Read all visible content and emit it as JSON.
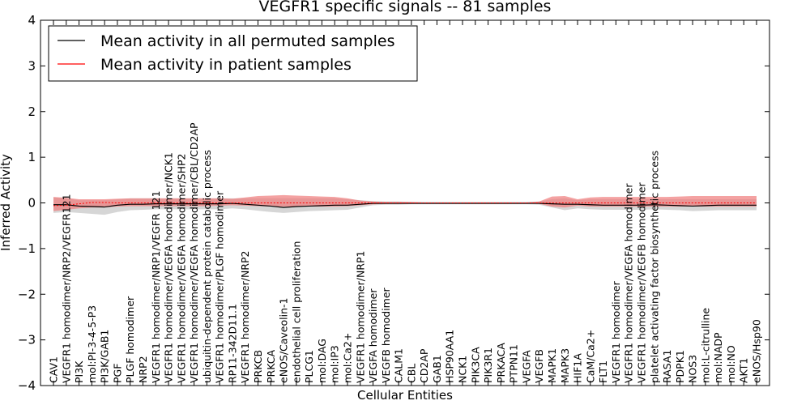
{
  "chart_data": {
    "type": "line",
    "title": "VEGFR1 specific signals -- 81 samples",
    "xlabel": "Cellular Entities",
    "ylabel": "Inferred Activity",
    "ylim": [
      -4,
      4
    ],
    "yticks": [
      "4",
      "3",
      "2",
      "1",
      "0",
      "−1",
      "−2",
      "−3",
      "−4"
    ],
    "ytick_values": [
      4,
      3,
      2,
      1,
      0,
      -1,
      -2,
      -3,
      -4
    ],
    "legend": {
      "placement": "top-left",
      "entries": [
        {
          "label": "Mean activity in all permuted samples",
          "color": "#000000"
        },
        {
          "label": "Mean activity in patient samples",
          "color": "#ff0000"
        }
      ]
    },
    "colors": {
      "permuted_line": "#000000",
      "patient_line": "#ff0000",
      "permuted_band": "#c8c8c8",
      "patient_band": "#ef7a7a"
    },
    "categories": [
      "CAV1",
      "VEGFR1 homodimer/NRP2/VEGFR121",
      "PI3K",
      "mol:PI-3-4-5-P3",
      "PI3K/GAB1",
      "PGF",
      "PLGF homodimer",
      "NRP2",
      "VEGFR1 homodimer/NRP1/VEGFR 121",
      "VEGFR1 homodimer/VEGFA homodimer/NCK1",
      "VEGFR1 homodimer/VEGFA homodimer/SHP2",
      "VEGFR1 homodimer/VEGFA homodimer/CBL/CD2AP",
      "ubiquitin-dependent protein catabolic process",
      "VEGFR1 homodimer/PLGF homodimer",
      "RP11-342D11.1",
      "VEGFR1 homodimer/NRP2",
      "PRKCB",
      "PRKCA",
      "eNOS/Caveolin-1",
      "endothelial cell proliferation",
      "PLCG1",
      "mol:DAG",
      "mol:IP3",
      "mol:Ca2+",
      "VEGFR1 homodimer/NRP1",
      "VEGFA homodimer",
      "VEGFB homodimer",
      "CALM1",
      "CBL",
      "CD2AP",
      "GAB1",
      "HSP90AA1",
      "NCK1",
      "PIK3CA",
      "PIK3R1",
      "PRKACA",
      "PTPN11",
      "VEGFA",
      "VEGFB",
      "MAPK1",
      "MAPK3",
      "HIF1A",
      "CaM/Ca2+",
      "FLT1",
      "VEGFR1 homodimer",
      "VEGFR1 homodimer/VEGFA homodimer",
      "VEGFR1 homodimer/VEGFB homodimer",
      "platelet activating factor biosynthetic process",
      "RASA1",
      "PDPK1",
      "NOS3",
      "mol:L-citrulline",
      "mol:NADP",
      "mol:NO",
      "AKT1",
      "eNOS/Hsp90"
    ],
    "series": [
      {
        "name": "Mean activity in all permuted samples",
        "values": [
          -0.04,
          -0.04,
          -0.07,
          -0.08,
          -0.09,
          -0.05,
          -0.03,
          -0.03,
          -0.02,
          -0.02,
          -0.02,
          -0.02,
          -0.02,
          -0.02,
          -0.01,
          -0.03,
          -0.05,
          -0.07,
          -0.1,
          -0.08,
          -0.07,
          -0.06,
          -0.05,
          -0.05,
          -0.03,
          -0.01,
          -0.01,
          -0.01,
          -0.01,
          -0.01,
          -0.01,
          -0.01,
          -0.01,
          -0.01,
          -0.01,
          -0.01,
          -0.01,
          -0.01,
          -0.01,
          -0.02,
          -0.03,
          -0.03,
          -0.04,
          -0.05,
          -0.05,
          -0.05,
          -0.05,
          -0.04,
          -0.05,
          -0.06,
          -0.07,
          -0.06,
          -0.05,
          -0.05,
          -0.05,
          -0.05
        ]
      },
      {
        "name": "Mean activity in patient samples",
        "values": [
          -0.06,
          -0.05,
          -0.02,
          0.01,
          0.01,
          0.0,
          0.0,
          0.0,
          0.0,
          0.0,
          0.0,
          0.0,
          0.0,
          0.0,
          0.0,
          0.0,
          0.0,
          0.0,
          0.0,
          0.0,
          0.0,
          0.0,
          0.0,
          0.0,
          0.0,
          0.0,
          0.0,
          0.0,
          0.0,
          0.0,
          0.0,
          0.0,
          0.0,
          0.0,
          0.0,
          0.0,
          0.0,
          0.0,
          0.0,
          0.0,
          0.0,
          0.0,
          0.0,
          0.0,
          0.0,
          0.0,
          0.0,
          0.0,
          0.0,
          0.0,
          0.0,
          0.0,
          0.0,
          0.0,
          0.0,
          0.0
        ]
      }
    ],
    "bands": [
      {
        "name": "permuted spread",
        "lower": [
          -0.22,
          -0.2,
          -0.22,
          -0.24,
          -0.26,
          -0.2,
          -0.16,
          -0.15,
          -0.14,
          -0.14,
          -0.14,
          -0.14,
          -0.14,
          -0.14,
          -0.12,
          -0.14,
          -0.17,
          -0.2,
          -0.22,
          -0.2,
          -0.18,
          -0.17,
          -0.16,
          -0.15,
          -0.1,
          -0.05,
          -0.04,
          -0.04,
          -0.03,
          -0.03,
          -0.03,
          -0.03,
          -0.03,
          -0.03,
          -0.03,
          -0.03,
          -0.03,
          -0.03,
          -0.04,
          -0.1,
          -0.16,
          -0.12,
          -0.14,
          -0.15,
          -0.15,
          -0.15,
          -0.15,
          -0.14,
          -0.15,
          -0.16,
          -0.18,
          -0.17,
          -0.16,
          -0.16,
          -0.16,
          -0.16
        ],
        "upper": [
          0.12,
          0.1,
          0.06,
          0.06,
          0.06,
          0.08,
          0.1,
          0.1,
          0.1,
          0.1,
          0.1,
          0.1,
          0.1,
          0.1,
          0.1,
          0.1,
          0.1,
          0.1,
          0.1,
          0.1,
          0.1,
          0.1,
          0.1,
          0.08,
          0.06,
          0.04,
          0.03,
          0.03,
          0.02,
          0.02,
          0.02,
          0.02,
          0.02,
          0.02,
          0.02,
          0.02,
          0.02,
          0.02,
          0.03,
          0.08,
          0.1,
          0.06,
          0.08,
          0.08,
          0.08,
          0.08,
          0.08,
          0.08,
          0.08,
          0.08,
          0.08,
          0.08,
          0.08,
          0.08,
          0.08,
          0.08
        ]
      },
      {
        "name": "patient spread",
        "lower": [
          -0.18,
          -0.15,
          -0.12,
          -0.1,
          -0.1,
          -0.08,
          -0.07,
          -0.07,
          -0.07,
          -0.07,
          -0.07,
          -0.07,
          -0.07,
          -0.06,
          -0.05,
          -0.06,
          -0.07,
          -0.08,
          -0.08,
          -0.08,
          -0.08,
          -0.08,
          -0.08,
          -0.07,
          -0.05,
          -0.03,
          -0.02,
          -0.02,
          -0.02,
          -0.01,
          -0.01,
          -0.01,
          -0.01,
          -0.01,
          -0.01,
          -0.01,
          -0.01,
          -0.01,
          -0.02,
          -0.08,
          -0.1,
          -0.06,
          -0.08,
          -0.08,
          -0.08,
          -0.08,
          -0.08,
          -0.08,
          -0.08,
          -0.08,
          -0.08,
          -0.08,
          -0.08,
          -0.08,
          -0.08,
          -0.08
        ],
        "upper": [
          0.13,
          0.11,
          0.08,
          0.08,
          0.08,
          0.09,
          0.1,
          0.1,
          0.1,
          0.1,
          0.1,
          0.1,
          0.1,
          0.1,
          0.09,
          0.12,
          0.15,
          0.16,
          0.17,
          0.16,
          0.15,
          0.14,
          0.13,
          0.1,
          0.05,
          0.03,
          0.02,
          0.02,
          0.02,
          0.01,
          0.01,
          0.01,
          0.01,
          0.01,
          0.01,
          0.01,
          0.01,
          0.01,
          0.03,
          0.14,
          0.15,
          0.08,
          0.12,
          0.13,
          0.13,
          0.13,
          0.13,
          0.13,
          0.13,
          0.14,
          0.15,
          0.15,
          0.15,
          0.15,
          0.15,
          0.15
        ]
      }
    ]
  }
}
